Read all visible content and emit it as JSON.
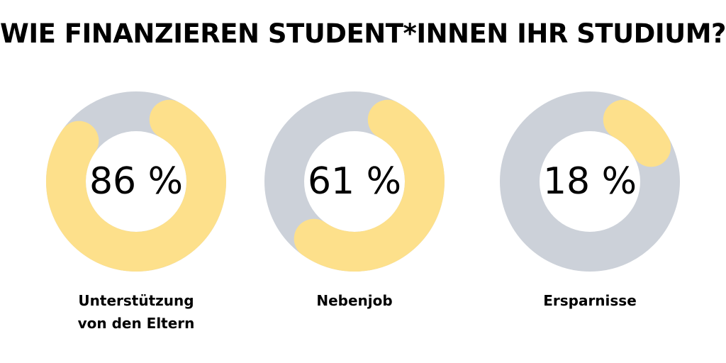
{
  "title": "WIE FINANZIEREN STUDENT*INNEN IHR STUDIUM?",
  "colors": {
    "accent": "#fde08b",
    "track": "#ccd1d9",
    "text": "#000000",
    "background": "#ffffff"
  },
  "chart_data": [
    {
      "type": "pie",
      "subtype": "donut",
      "value": 86,
      "unit": "%",
      "value_label": "86 %",
      "label": "Unterstützung\nvon den Eltern"
    },
    {
      "type": "pie",
      "subtype": "donut",
      "value": 61,
      "unit": "%",
      "value_label": "61 %",
      "label": "Nebenjob"
    },
    {
      "type": "pie",
      "subtype": "donut",
      "value": 18,
      "unit": "%",
      "value_label": "18 %",
      "label": "Ersparnisse"
    }
  ]
}
